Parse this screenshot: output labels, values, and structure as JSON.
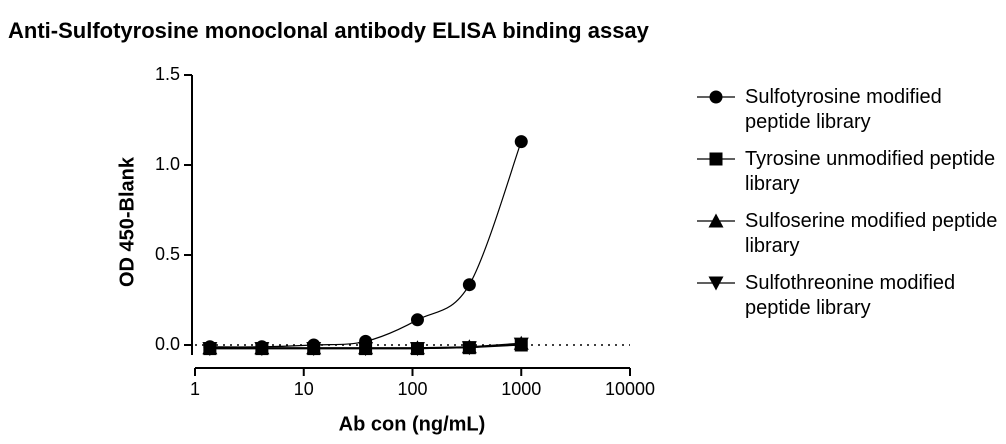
{
  "chart_data": {
    "type": "line",
    "title": "Anti-Sulfotyrosine monoclonal antibody ELISA binding assay",
    "x_label": "Ab con (ng/mL)",
    "y_label": "OD 450-Blank",
    "x": [
      1.37,
      4.12,
      12.35,
      37.04,
      111.1,
      333.3,
      1000
    ],
    "xscale": "log",
    "xlim": [
      1,
      10000
    ],
    "xticks": [
      1,
      10,
      100,
      1000,
      10000
    ],
    "ylim": [
      0,
      1.5
    ],
    "yticks": [
      {
        "value": 0,
        "label": "0.0"
      },
      0.5,
      {
        "value": 1,
        "label": "1.0"
      },
      1.5
    ],
    "reference_line": 0,
    "legend": "right",
    "series": [
      {
        "name": "Sulfotyrosine modified peptide library",
        "color": "#000000",
        "marker": "circle",
        "smooth": true,
        "values": [
          -0.01,
          -0.01,
          0.0,
          0.02,
          0.14,
          0.335,
          1.13
        ]
      },
      {
        "name": "Tyrosine unmodified peptide library",
        "color": "#000000",
        "marker": "square",
        "smooth": false,
        "values": [
          -0.02,
          -0.02,
          -0.02,
          -0.02,
          -0.02,
          -0.015,
          0.0
        ]
      },
      {
        "name": "Sulfoserine modified peptide library",
        "color": "#000000",
        "marker": "triangle-up",
        "smooth": false,
        "values": [
          -0.015,
          -0.015,
          -0.015,
          -0.015,
          -0.015,
          -0.01,
          0.01
        ]
      },
      {
        "name": "Sulfothreonine modified peptide library",
        "color": "#000000",
        "marker": "triangle-down",
        "smooth": false,
        "values": [
          -0.02,
          -0.02,
          -0.02,
          -0.02,
          -0.02,
          -0.015,
          0.005
        ]
      }
    ]
  }
}
